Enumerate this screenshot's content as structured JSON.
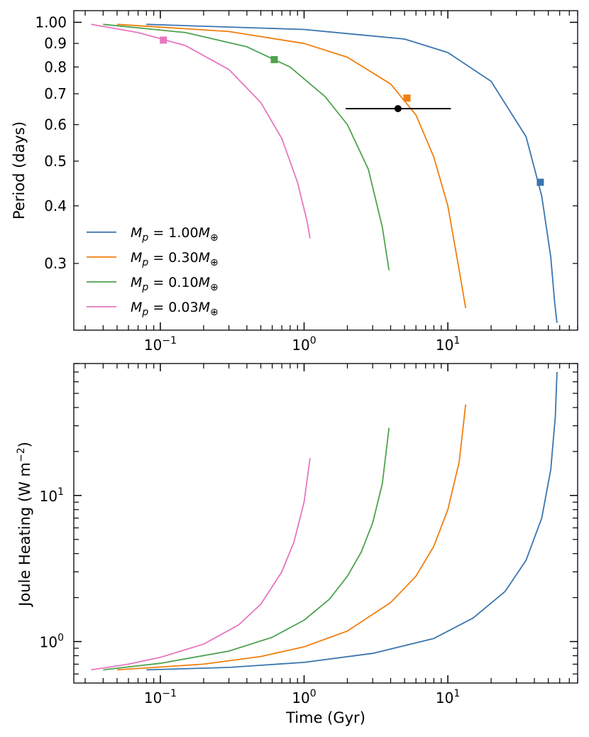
{
  "chart_data": [
    {
      "type": "line",
      "id": "period",
      "xscale": "log",
      "yscale": "log",
      "xlim": [
        0.025,
        80
      ],
      "ylim": [
        0.215,
        1.06
      ],
      "xlabel": "",
      "ylabel": "Period (days)",
      "xticks": [
        {
          "value": 0.1,
          "base": "10",
          "exp": "−1"
        },
        {
          "value": 1,
          "base": "10",
          "exp": "0"
        },
        {
          "value": 10,
          "base": "10",
          "exp": "1"
        }
      ],
      "yticks": [
        {
          "value": 1.0,
          "label": "1.00"
        },
        {
          "value": 0.9,
          "label": "0.9"
        },
        {
          "value": 0.8,
          "label": "0.8"
        },
        {
          "value": 0.7,
          "label": "0.7"
        },
        {
          "value": 0.6,
          "label": "0.6"
        },
        {
          "value": 0.5,
          "label": "0.5"
        },
        {
          "value": 0.4,
          "label": "0.4"
        },
        {
          "value": 0.3,
          "label": "0.3"
        }
      ],
      "legend_position": "lower-left",
      "series": [
        {
          "name": "1.00",
          "color": "#3b75af",
          "x": [
            0.08,
            1,
            5,
            10,
            20,
            35,
            45,
            52,
            55.5,
            57.5
          ],
          "y": [
            0.99,
            0.965,
            0.92,
            0.86,
            0.745,
            0.565,
            0.42,
            0.31,
            0.245,
            0.223
          ],
          "marker": {
            "x": 44,
            "y": 0.45
          }
        },
        {
          "name": "0.30",
          "color": "#f07f0e",
          "x": [
            0.05,
            0.3,
            1,
            2,
            4,
            6,
            8,
            10,
            12,
            13.3
          ],
          "y": [
            0.99,
            0.955,
            0.9,
            0.84,
            0.735,
            0.63,
            0.51,
            0.4,
            0.29,
            0.24
          ],
          "marker": {
            "x": 5.2,
            "y": 0.685
          }
        },
        {
          "name": "0.10",
          "color": "#4ea34e",
          "x": [
            0.04,
            0.15,
            0.4,
            0.8,
            1.4,
            2,
            2.8,
            3.5,
            3.9
          ],
          "y": [
            0.99,
            0.95,
            0.885,
            0.8,
            0.69,
            0.6,
            0.48,
            0.36,
            0.29
          ],
          "marker": {
            "x": 0.62,
            "y": 0.83
          }
        },
        {
          "name": "0.03",
          "color": "#e776c0",
          "x": [
            0.033,
            0.07,
            0.15,
            0.3,
            0.5,
            0.7,
            0.9,
            1.05,
            1.1
          ],
          "y": [
            0.99,
            0.95,
            0.89,
            0.79,
            0.67,
            0.56,
            0.45,
            0.37,
            0.34
          ],
          "marker": {
            "x": 0.105,
            "y": 0.915
          }
        }
      ],
      "errorbar": {
        "x": 4.5,
        "y": 0.65,
        "xerr_low": 1.95,
        "xerr_high": 10.5,
        "color": "#000000"
      }
    },
    {
      "type": "line",
      "id": "joule",
      "xscale": "log",
      "yscale": "log",
      "xlim": [
        0.025,
        80
      ],
      "ylim": [
        0.52,
        80
      ],
      "xlabel": "Time (Gyr)",
      "ylabel_main": "Joule Heating (W m",
      "ylabel_exp": "−2",
      "ylabel_close": ")",
      "xticks": [
        {
          "value": 0.1,
          "base": "10",
          "exp": "−1"
        },
        {
          "value": 1,
          "base": "10",
          "exp": "0"
        },
        {
          "value": 10,
          "base": "10",
          "exp": "1"
        }
      ],
      "yticks": [
        {
          "value": 1,
          "base": "10",
          "exp": "0"
        },
        {
          "value": 10,
          "base": "10",
          "exp": "1"
        }
      ],
      "series": [
        {
          "name": "1.00",
          "color": "#3b75af",
          "x": [
            0.08,
            0.3,
            1,
            3,
            8,
            15,
            25,
            35,
            45,
            52,
            56,
            57.5
          ],
          "y": [
            0.64,
            0.665,
            0.72,
            0.83,
            1.05,
            1.45,
            2.2,
            3.6,
            7,
            15,
            35,
            70
          ]
        },
        {
          "name": "0.30",
          "color": "#f07f0e",
          "x": [
            0.05,
            0.2,
            0.5,
            1,
            2,
            4,
            6,
            8,
            10,
            12,
            13.3
          ],
          "y": [
            0.64,
            0.7,
            0.79,
            0.92,
            1.18,
            1.85,
            2.8,
            4.5,
            8,
            17,
            42
          ]
        },
        {
          "name": "0.10",
          "color": "#4ea34e",
          "x": [
            0.04,
            0.1,
            0.3,
            0.6,
            1,
            1.5,
            2,
            2.5,
            3,
            3.5,
            3.9
          ],
          "y": [
            0.64,
            0.71,
            0.86,
            1.07,
            1.4,
            1.95,
            2.8,
            4.1,
            6.5,
            12,
            29
          ]
        },
        {
          "name": "0.03",
          "color": "#e776c0",
          "x": [
            0.033,
            0.06,
            0.1,
            0.2,
            0.35,
            0.5,
            0.7,
            0.85,
            1,
            1.1
          ],
          "y": [
            0.64,
            0.7,
            0.78,
            0.96,
            1.3,
            1.8,
            3,
            4.8,
            9,
            18
          ]
        }
      ]
    }
  ],
  "legend": {
    "symbol": "M",
    "subscript": "p",
    "operator": " = ",
    "unit": "M",
    "unit_subscript": "⊕",
    "entries": [
      {
        "value": "1.00",
        "color": "#3b75af"
      },
      {
        "value": "0.30",
        "color": "#f07f0e"
      },
      {
        "value": "0.10",
        "color": "#4ea34e"
      },
      {
        "value": "0.03",
        "color": "#e776c0"
      }
    ]
  }
}
